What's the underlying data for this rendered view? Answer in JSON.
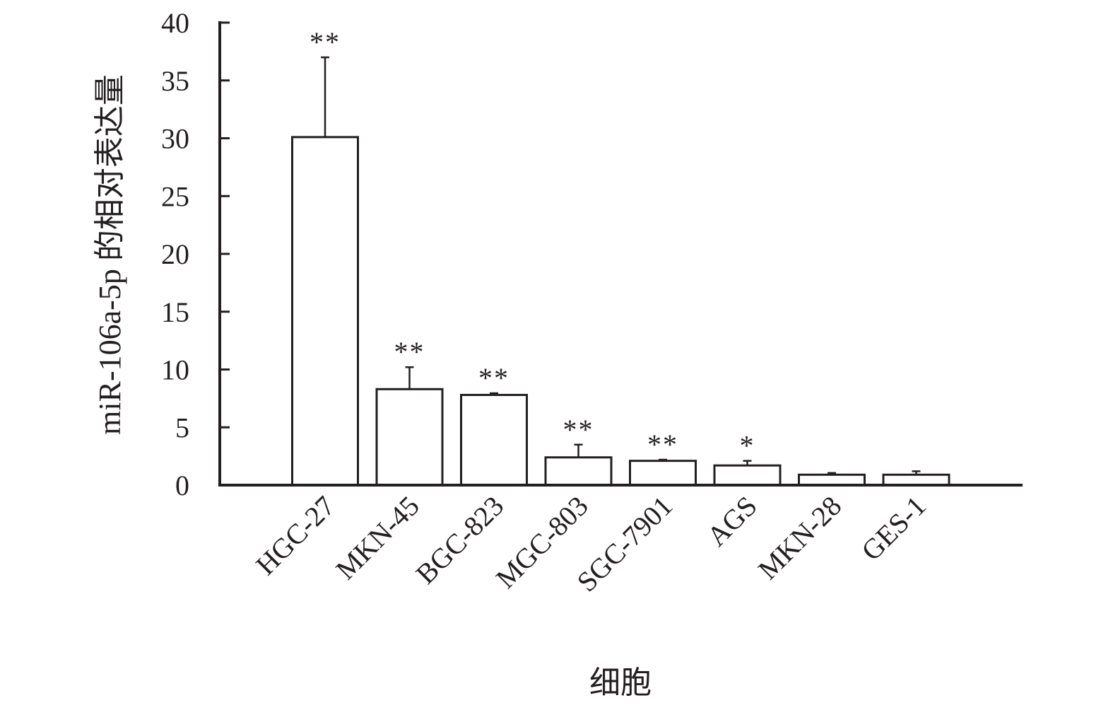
{
  "chart_data": {
    "type": "bar",
    "xlabel": "细胞",
    "ylabel": "miR-106a-5p 的相对表达量",
    "ylim": [
      0,
      40
    ],
    "yticks": [
      0,
      5,
      10,
      15,
      20,
      25,
      30,
      35,
      40
    ],
    "grid": false,
    "categories": [
      "HGC-27",
      "MKN-45",
      "BGC-823",
      "MGC-803",
      "SGC-7901",
      "AGS",
      "MKN-28",
      "GES-1"
    ],
    "values": [
      30.1,
      8.3,
      7.8,
      2.4,
      2.1,
      1.7,
      0.9,
      0.9
    ],
    "error": [
      6.9,
      1.9,
      0.15,
      1.1,
      0.1,
      0.4,
      0.15,
      0.3
    ],
    "significance": [
      "**",
      "**",
      "**",
      "**",
      "**",
      "*",
      "",
      ""
    ],
    "colors": {
      "bar_fill": "#ffffff",
      "stroke": "#231f20"
    }
  }
}
